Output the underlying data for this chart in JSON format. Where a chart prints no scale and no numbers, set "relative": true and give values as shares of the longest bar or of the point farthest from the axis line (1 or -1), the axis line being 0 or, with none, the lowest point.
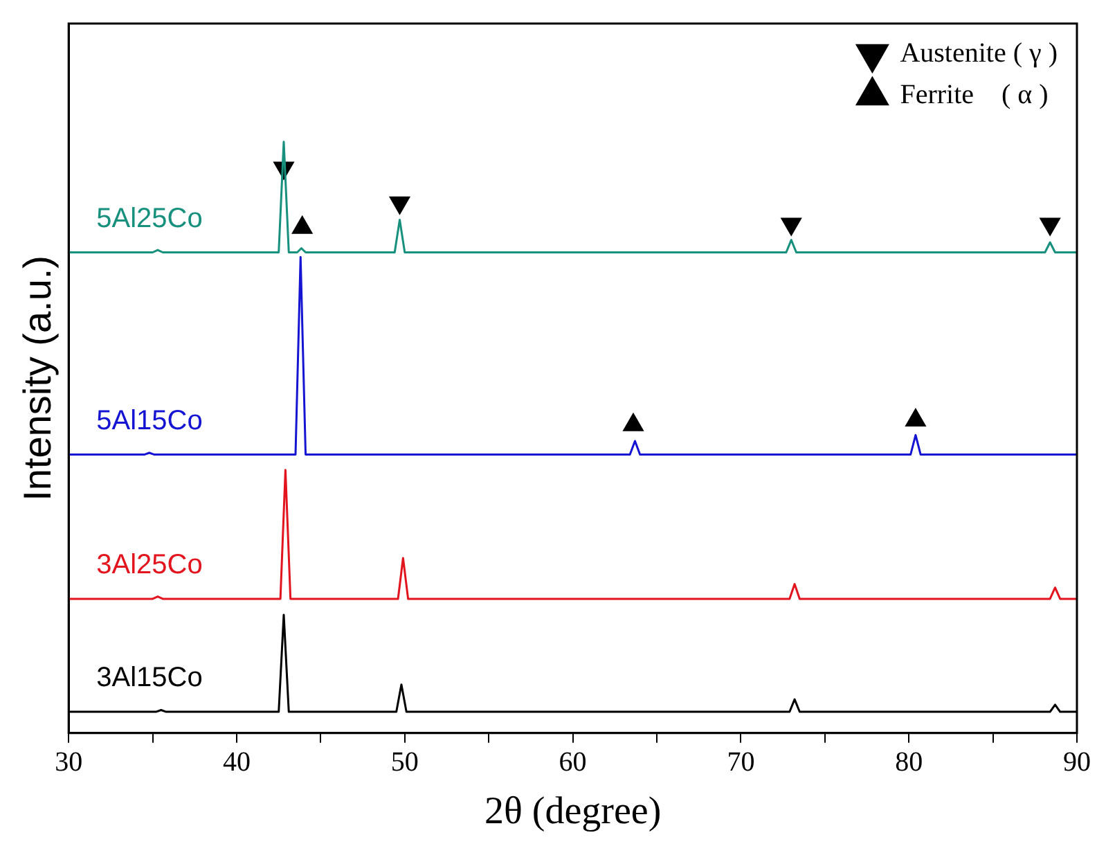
{
  "chart_data": {
    "type": "line",
    "relative": true,
    "xlabel": "2θ (degree)",
    "ylabel": "Intensity (a.u.)",
    "xlim": [
      30,
      90
    ],
    "xticks": [
      30,
      {
        "value": 35,
        "label": null
      },
      40,
      {
        "value": 45,
        "label": null
      },
      50,
      {
        "value": 55,
        "label": null
      },
      60,
      {
        "value": 65,
        "label": null
      },
      70,
      {
        "value": 75,
        "label": null
      },
      80,
      {
        "value": 85,
        "label": null
      },
      90
    ],
    "grid": false,
    "legend": "top right",
    "marker": "none",
    "line_style": "solid",
    "series": [
      {
        "name": "5Al25Co",
        "color": "#17907e",
        "x": [
          30,
          35.0,
          35.3,
          35.6,
          42.5,
          42.8,
          43.1,
          43.6,
          43.85,
          44.1,
          49.4,
          49.7,
          50.0,
          72.7,
          73.0,
          73.3,
          88.1,
          88.4,
          88.7,
          90
        ],
        "values": [
          0.813,
          0.813,
          0.817,
          0.813,
          0.813,
          1,
          0.813,
          0.813,
          0.82,
          0.813,
          0.813,
          0.868,
          0.813,
          0.813,
          0.834,
          0.813,
          0.813,
          0.83,
          0.813,
          0.813
        ]
      },
      {
        "name": "5Al15Co",
        "color": "#1414d2",
        "x": [
          30,
          34.5,
          34.8,
          35.1,
          43.5,
          43.8,
          44.1,
          63.4,
          63.7,
          64.0,
          80.1,
          80.4,
          80.7,
          90
        ],
        "values": [
          0.471,
          0.471,
          0.474,
          0.471,
          0.471,
          0.805,
          0.471,
          0.471,
          0.494,
          0.471,
          0.471,
          0.504,
          0.471,
          0.471
        ]
      },
      {
        "name": "3Al25Co",
        "color": "#e2141e",
        "x": [
          30,
          35.0,
          35.3,
          35.6,
          42.6,
          42.9,
          43.2,
          49.6,
          49.9,
          50.2,
          72.9,
          73.2,
          73.5,
          88.4,
          88.7,
          89.0,
          90
        ],
        "values": [
          0.227,
          0.227,
          0.231,
          0.227,
          0.227,
          0.445,
          0.227,
          0.227,
          0.296,
          0.227,
          0.227,
          0.252,
          0.227,
          0.227,
          0.246,
          0.227,
          0.227
        ]
      },
      {
        "name": "3Al15Co",
        "color": "#000000",
        "x": [
          30,
          35.2,
          35.5,
          35.8,
          42.5,
          42.8,
          43.1,
          49.5,
          49.8,
          50.1,
          72.9,
          73.2,
          73.5,
          88.4,
          88.7,
          89.0,
          90
        ],
        "values": [
          0.036,
          0.036,
          0.039,
          0.036,
          0.036,
          0.2,
          0.036,
          0.036,
          0.082,
          0.036,
          0.036,
          0.057,
          0.036,
          0.036,
          0.048,
          0.036,
          0.036
        ]
      },
      {
        "name": "Austenite ( γ )",
        "type": "scatter",
        "marker": "triangle-down",
        "color": "#000000",
        "x": [
          42.8,
          49.7,
          73.0,
          88.4
        ],
        "values": [
          0.956,
          0.897,
          0.861,
          0.861
        ]
      },
      {
        "name": "Ferrite    ( α )",
        "type": "scatter",
        "marker": "triangle",
        "color": "#000000",
        "x": [
          43.9,
          63.6,
          80.4
        ],
        "values": [
          0.855,
          0.521,
          0.529
        ]
      }
    ]
  }
}
